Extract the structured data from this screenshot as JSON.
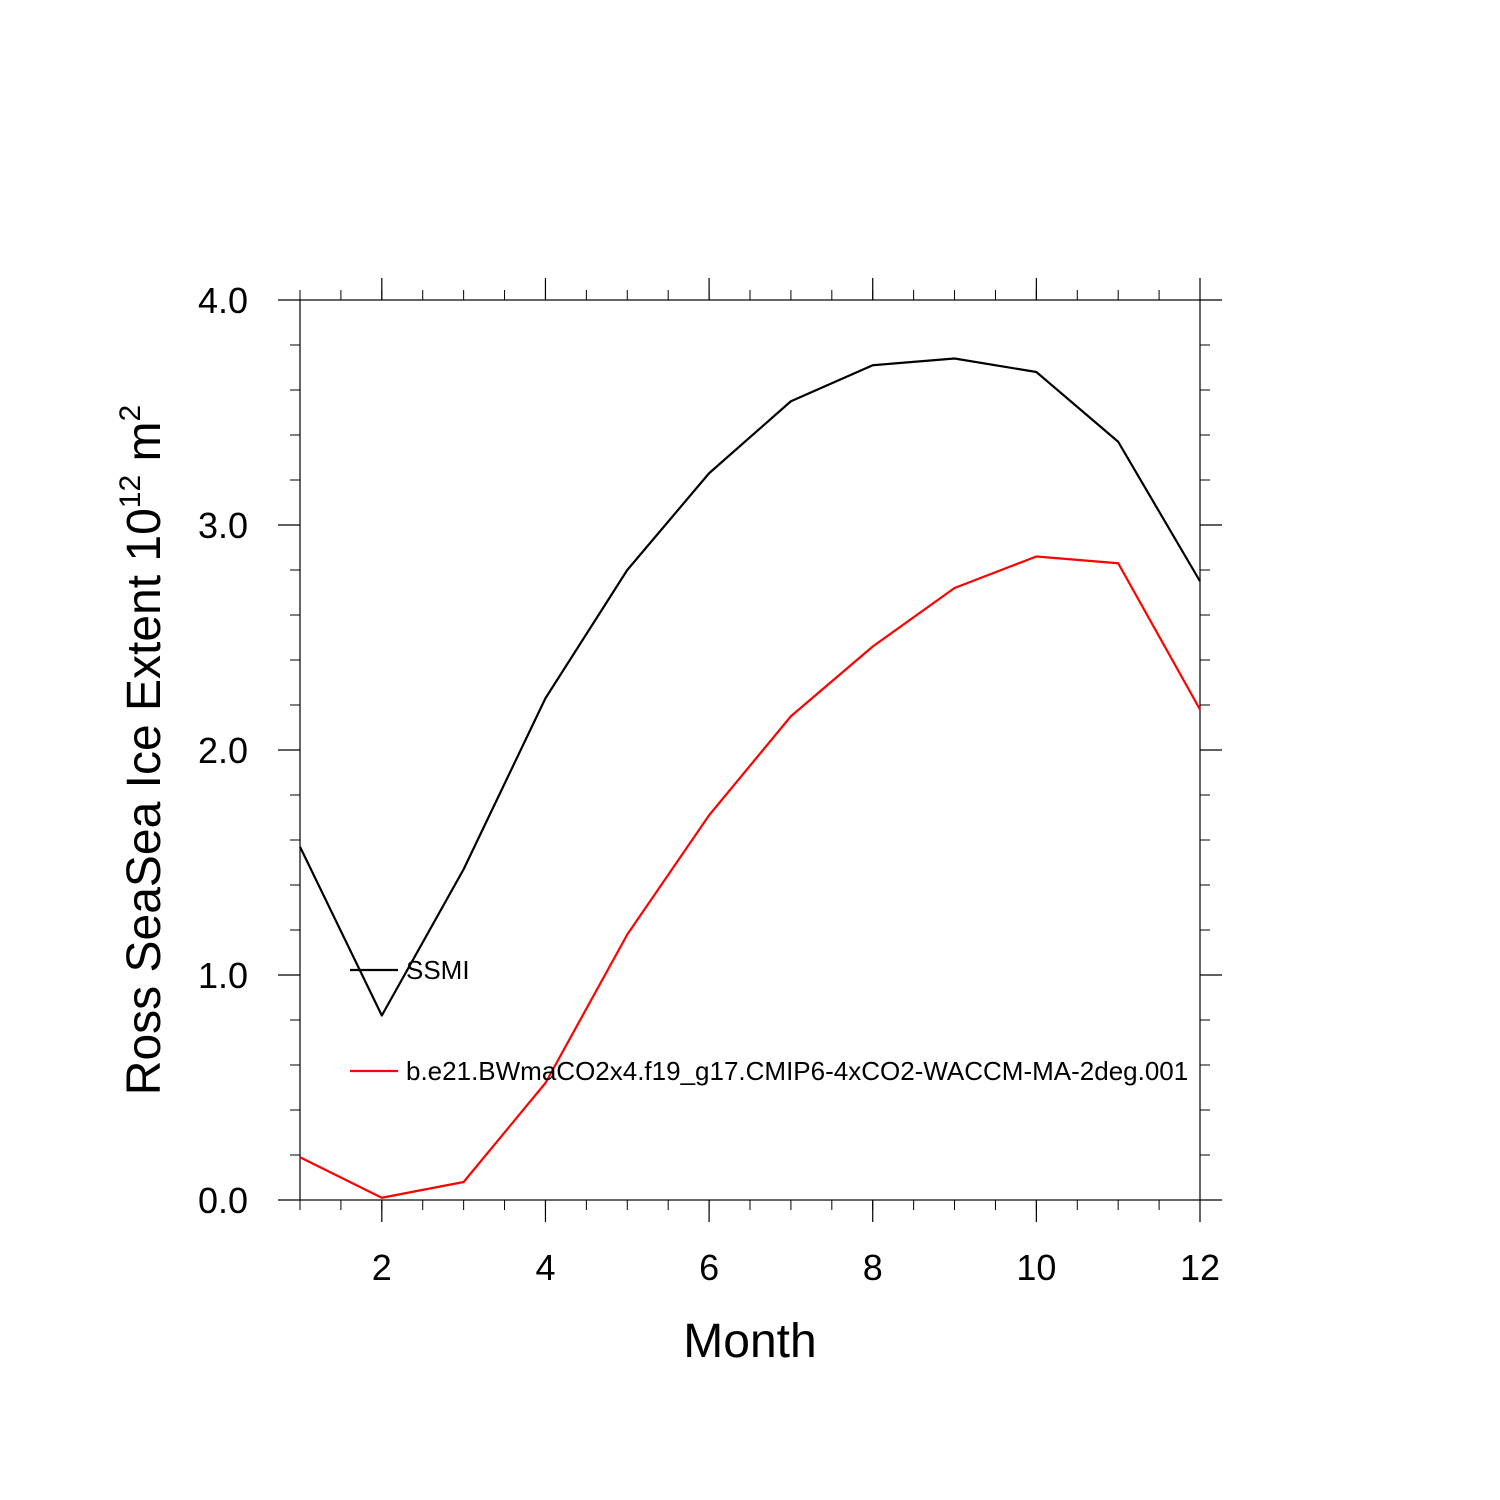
{
  "chart_data": {
    "type": "line",
    "title": "",
    "xlabel": "Month",
    "ylabel_main": "Ross SeaSea Ice Extent 10",
    "ylabel_exponent": "12",
    "ylabel_unit": " m",
    "ylabel_unit_exponent": "2",
    "xlim": [
      1,
      12
    ],
    "ylim": [
      0,
      4
    ],
    "x_ticks": [
      2,
      4,
      6,
      8,
      10,
      12
    ],
    "x_tick_labels": [
      "2",
      "4",
      "6",
      "8",
      "10",
      "12"
    ],
    "y_ticks": [
      0,
      1,
      2,
      3,
      4
    ],
    "y_tick_labels": [
      "0.0",
      "1.0",
      "2.0",
      "3.0",
      "4.0"
    ],
    "x": [
      1,
      2,
      3,
      4,
      5,
      6,
      7,
      8,
      9,
      10,
      11,
      12
    ],
    "series": [
      {
        "name": "SSMI",
        "color": "#000000",
        "values": [
          1.57,
          0.82,
          1.47,
          2.23,
          2.8,
          3.23,
          3.55,
          3.71,
          3.74,
          3.68,
          3.37,
          2.75
        ]
      },
      {
        "name": "b.e21.BWmaCO2x4.f19_g17.CMIP6-4xCO2-WACCM-MA-2deg.001",
        "color": "#ff0000",
        "values": [
          0.19,
          0.01,
          0.08,
          0.52,
          1.18,
          1.71,
          2.15,
          2.46,
          2.72,
          2.86,
          2.83,
          2.18
        ]
      }
    ],
    "legend_location": "lower-left inside plot"
  }
}
